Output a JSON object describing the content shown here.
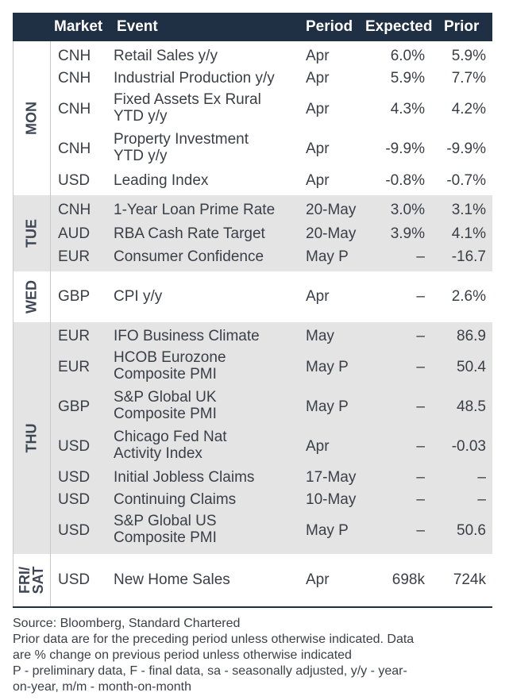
{
  "header": {
    "market": "Market",
    "event": "Event",
    "period": "Period",
    "expected": "Expected",
    "prior": "Prior"
  },
  "groups": [
    {
      "day": "MON",
      "rows": [
        {
          "market": "CNH",
          "event_lines": [
            "Retail Sales y/y"
          ],
          "period": "Apr",
          "expected": "6.0%",
          "prior": "5.9%"
        },
        {
          "market": "CNH",
          "event_lines": [
            "Industrial Production y/y"
          ],
          "period": "Apr",
          "expected": "5.9%",
          "prior": "7.7%"
        },
        {
          "market": "CNH",
          "event_lines": [
            "Fixed Assets Ex Rural",
            "YTD y/y"
          ],
          "period": "Apr",
          "expected": "4.3%",
          "prior": "4.2%"
        },
        {
          "market": "CNH",
          "event_lines": [
            "Property Investment",
            "YTD y/y"
          ],
          "period": "Apr",
          "expected": "-9.9%",
          "prior": "-9.9%"
        },
        {
          "market": "USD",
          "event_lines": [
            "Leading Index"
          ],
          "period": "Apr",
          "expected": "-0.8%",
          "prior": "-0.7%"
        }
      ]
    },
    {
      "day": "TUE",
      "rows": [
        {
          "market": "CNH",
          "event_lines": [
            "1-Year Loan Prime Rate"
          ],
          "period": "20-May",
          "expected": "3.0%",
          "prior": "3.1%"
        },
        {
          "market": "AUD",
          "event_lines": [
            "RBA Cash Rate Target"
          ],
          "period": "20-May",
          "expected": "3.9%",
          "prior": "4.1%"
        },
        {
          "market": "EUR",
          "event_lines": [
            "Consumer Confidence"
          ],
          "period": "May P",
          "expected": "–",
          "prior": "-16.7"
        }
      ]
    },
    {
      "day": "WED",
      "rows": [
        {
          "market": "GBP",
          "event_lines": [
            "CPI y/y"
          ],
          "period": "Apr",
          "expected": "–",
          "prior": "2.6%"
        }
      ]
    },
    {
      "day": "THU",
      "rows": [
        {
          "market": "EUR",
          "event_lines": [
            "IFO Business Climate"
          ],
          "period": "May",
          "expected": "–",
          "prior": "86.9"
        },
        {
          "market": "EUR",
          "event_lines": [
            "HCOB Eurozone",
            "Composite PMI"
          ],
          "period": "May P",
          "expected": "–",
          "prior": "50.4"
        },
        {
          "market": "GBP",
          "event_lines": [
            "S&P Global UK",
            "Composite PMI"
          ],
          "period": "May P",
          "expected": "–",
          "prior": "48.5"
        },
        {
          "market": "USD",
          "event_lines": [
            "Chicago Fed Nat",
            "Activity Index"
          ],
          "period": "Apr",
          "expected": "–",
          "prior": "-0.03"
        },
        {
          "market": "USD",
          "event_lines": [
            "Initial Jobless Claims"
          ],
          "period": "17-May",
          "expected": "–",
          "prior": "–"
        },
        {
          "market": "USD",
          "event_lines": [
            "Continuing Claims"
          ],
          "period": "10-May",
          "expected": "–",
          "prior": "–"
        },
        {
          "market": "USD",
          "event_lines": [
            "S&P Global US",
            "Composite PMI"
          ],
          "period": "May P",
          "expected": "–",
          "prior": "50.6"
        }
      ]
    },
    {
      "day": "FRI/\nSAT",
      "rows": [
        {
          "market": "USD",
          "event_lines": [
            "New Home Sales"
          ],
          "period": "Apr",
          "expected": "698k",
          "prior": "724k"
        }
      ]
    }
  ],
  "notes": [
    "Source: Bloomberg, Standard Chartered",
    "Prior data are for the preceding period unless otherwise indicated. Data",
    "are % change on previous period unless otherwise indicated",
    "P - preliminary data, F - final data, sa - seasonally adjusted, y/y - year-",
    "on-year, m/m - month-on-month"
  ]
}
